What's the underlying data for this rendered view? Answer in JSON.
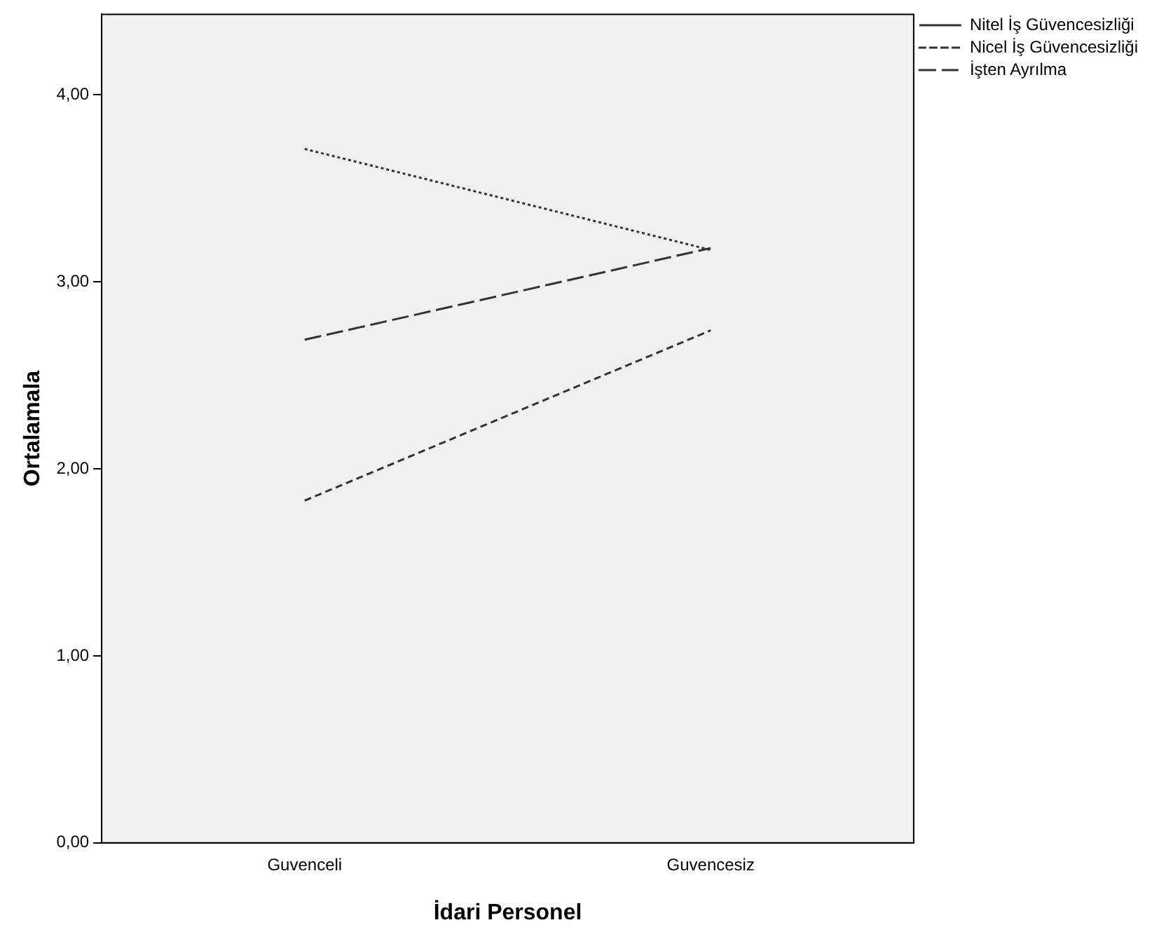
{
  "chart_data": {
    "type": "line",
    "xlabel": "İdari Personel",
    "ylabel": "Ortalamala",
    "categories": [
      "Guvenceli",
      "Guvencesiz"
    ],
    "series": [
      {
        "name": "Nitel İş Güvencesizliği",
        "color": "#333333",
        "line_style": "dotted",
        "values": [
          3.71,
          3.17
        ]
      },
      {
        "name": "Nicel İş Güvencesizliği",
        "color": "#333333",
        "line_style": "dashed",
        "values": [
          1.83,
          2.74
        ]
      },
      {
        "name": "İşten Ayrılma",
        "color": "#333333",
        "line_style": "longdash",
        "values": [
          2.69,
          3.18
        ]
      }
    ],
    "ylim": [
      0,
      4.43
    ],
    "yticks": [
      {
        "value": 0,
        "label": "0,00"
      },
      {
        "value": 1,
        "label": "1,00"
      },
      {
        "value": 2,
        "label": "2,00"
      },
      {
        "value": 3,
        "label": "3,00"
      },
      {
        "value": 4,
        "label": "4,00"
      }
    ],
    "grid": false,
    "legend": "top right",
    "marker": "none"
  }
}
